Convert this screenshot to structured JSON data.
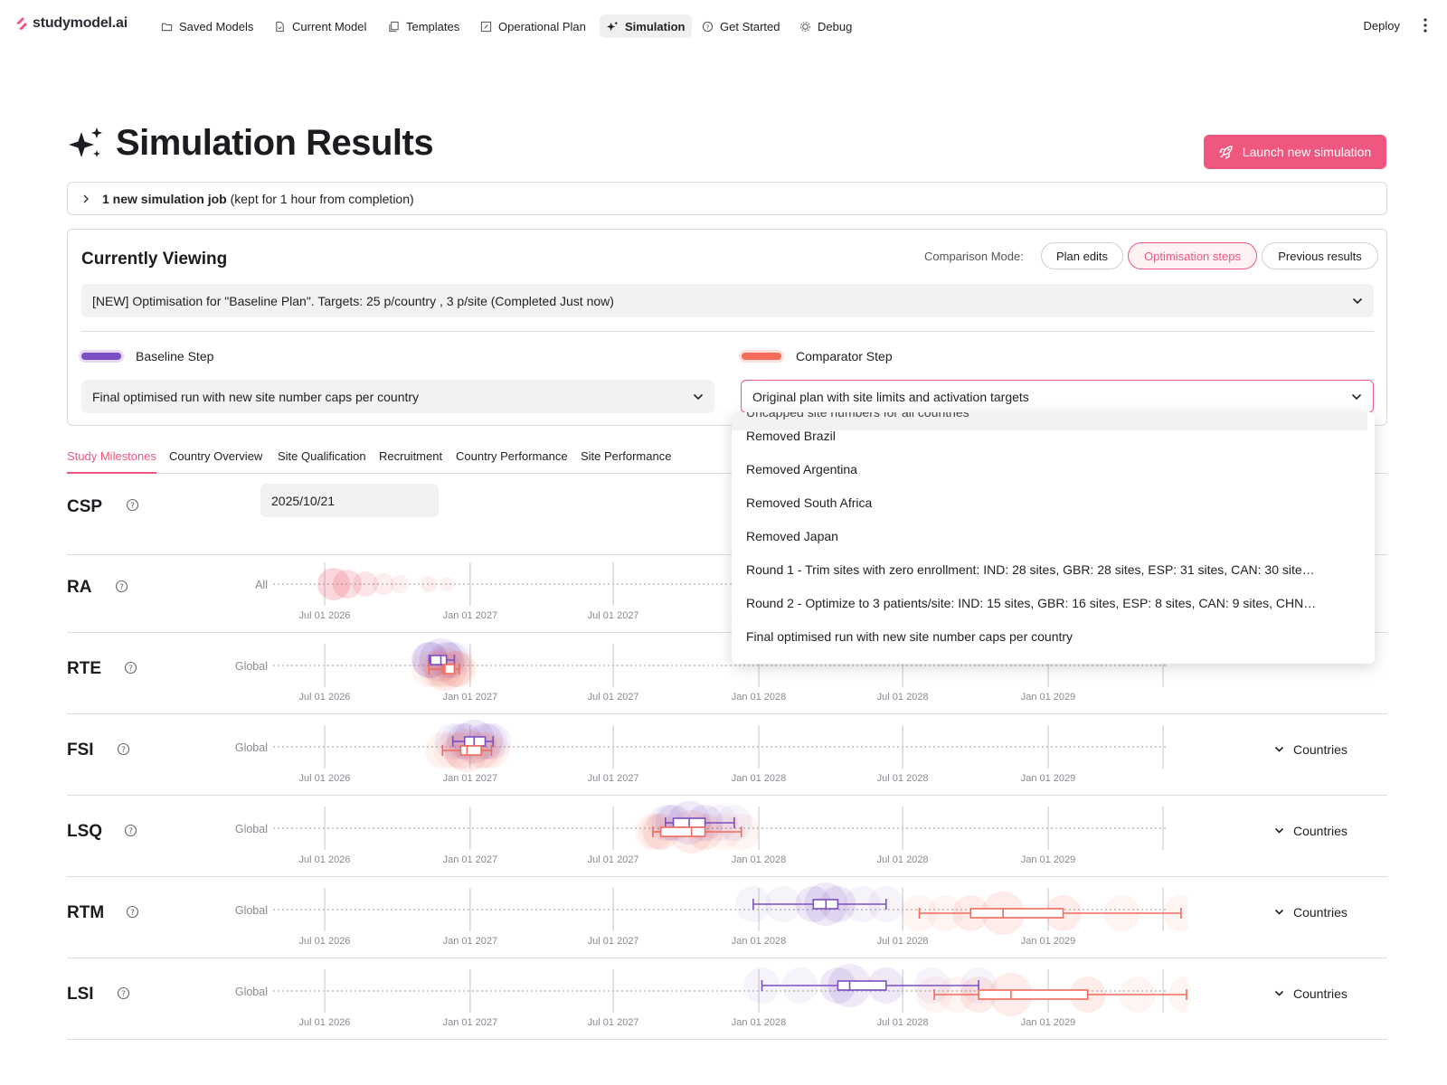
{
  "nav": {
    "logo_text": "studymodel.ai",
    "items": [
      {
        "label": "Saved Models",
        "icon": "folder-icon"
      },
      {
        "label": "Current Model",
        "icon": "file-icon"
      },
      {
        "label": "Templates",
        "icon": "copy-icon"
      },
      {
        "label": "Operational Plan",
        "icon": "edit-icon"
      },
      {
        "label": "Simulation",
        "icon": "sparkle-icon",
        "active": true
      },
      {
        "label": "Get Started",
        "icon": "help-icon"
      },
      {
        "label": "Debug",
        "icon": "gear-icon"
      }
    ],
    "deploy": "Deploy"
  },
  "header": {
    "title": "Simulation Results",
    "launch_button": "Launch new simulation"
  },
  "job_bar": {
    "bold": "1 new simulation job",
    "rest": "(kept for 1 hour from completion)"
  },
  "viewing": {
    "title": "Currently Viewing",
    "comparison_label": "Comparison Mode:",
    "modes": [
      "Plan edits",
      "Optimisation steps",
      "Previous results"
    ],
    "active_mode": "Optimisation steps",
    "plan_selected": "[NEW] Optimisation for \"Baseline Plan\". Targets: 25 p/country , 3 p/site (Completed Just now)",
    "baseline_label": "Baseline Step",
    "comparator_label": "Comparator Step",
    "baseline_selected": "Final optimised run with new site number caps per country",
    "comparator_selected": "Original plan with site limits and activation targets"
  },
  "dropdown": {
    "cut_off_item": "Uncapped site numbers for all countries",
    "items": [
      "Removed Brazil",
      "Removed Argentina",
      "Removed South Africa",
      "Removed Japan",
      "Round 1 - Trim sites with zero enrollment: IND: 28 sites, GBR: 28 sites, ESP: 31 sites, CAN: 30 site…",
      "Round 2 - Optimize to 3 patients/site: IND: 15 sites, GBR: 16 sites, ESP: 8 sites, CAN: 9 sites, CHN…",
      "Final optimised run with new site number caps per country"
    ]
  },
  "tabs": [
    "Study Milestones",
    "Country Overview",
    "Site Qualification",
    "Recruitment",
    "Country Performance",
    "Site Performance"
  ],
  "active_tab": "Study Milestones",
  "colors": {
    "accent": "#f0577f",
    "baseline": "#7b4fc4",
    "comparator": "#f26b5b"
  },
  "milestones": {
    "csp": {
      "label": "CSP",
      "value": "2025/10/21"
    },
    "axis_ticks": [
      "Jul 01 2026",
      "Jan 01 2027",
      "Jul 01 2027",
      "Jan 01 2028",
      "Jul 01 2028",
      "Jan 01 2029"
    ],
    "countries_label": "Countries",
    "rows": [
      {
        "label": "RA",
        "group": "All"
      },
      {
        "label": "RTE",
        "group": "Global",
        "baseline": {
          "min": "2026-11-10",
          "q1": "2026-11-12",
          "median": "2026-11-25",
          "q3": "2026-12-02",
          "max": "2026-12-12"
        },
        "comparator": {
          "min": "2026-11-10",
          "q1": "2026-11-28",
          "median": "2026-11-30",
          "q3": "2026-12-12",
          "max": "2026-12-18"
        }
      },
      {
        "label": "FSI",
        "group": "Global",
        "baseline": {
          "min": "2026-12-10",
          "q1": "2026-12-25",
          "median": "2027-01-06",
          "q3": "2027-01-20",
          "max": "2027-01-30"
        },
        "comparator": {
          "min": "2026-11-27",
          "q1": "2026-12-20",
          "median": "2026-12-28",
          "q3": "2027-01-15",
          "max": "2027-01-28"
        }
      },
      {
        "label": "LSQ",
        "group": "Global",
        "baseline": {
          "min": "2027-09-05",
          "q1": "2027-09-15",
          "median": "2027-10-05",
          "q3": "2027-10-25",
          "max": "2027-12-01"
        },
        "comparator": {
          "min": "2027-08-20",
          "q1": "2027-08-30",
          "median": "2027-10-08",
          "q3": "2027-10-25",
          "max": "2027-12-10"
        }
      },
      {
        "label": "RTM",
        "group": "Global",
        "baseline": {
          "min": "2027-12-25",
          "q1": "2028-03-10",
          "median": "2028-03-26",
          "q3": "2028-04-10",
          "max": "2028-06-10"
        },
        "comparator": {
          "min": "2028-07-22",
          "q1": "2028-09-25",
          "median": "2028-11-05",
          "q3": "2029-01-20",
          "max": "2029-06-18"
        }
      },
      {
        "label": "LSI",
        "group": "Global",
        "baseline": {
          "min": "2028-01-05",
          "q1": "2028-04-10",
          "median": "2028-04-25",
          "q3": "2028-06-10",
          "max": "2028-10-05"
        },
        "comparator": {
          "min": "2028-08-10",
          "q1": "2028-10-05",
          "median": "2028-11-15",
          "q3": "2029-02-20",
          "max": "2029-06-25"
        }
      }
    ]
  }
}
